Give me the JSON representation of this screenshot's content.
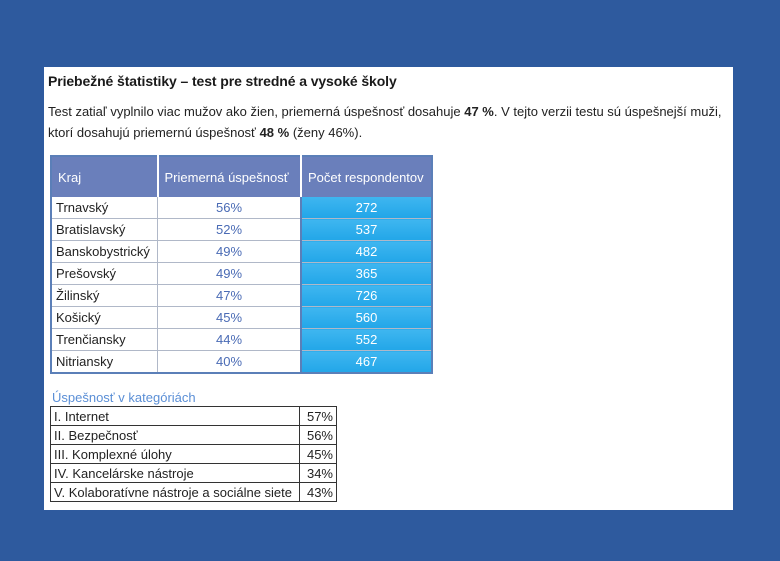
{
  "title": "Priebežné štatistiky – test pre stredné a vysoké školy",
  "intro": {
    "part1": "Test zatiaľ vyplnilo viac mužov ako žien, priemerná úspešnosť dosahuje ",
    "bold1": "47 %",
    "part2": ". V tejto verzii testu sú úspešnejší muži, ktorí dosahujú priemernú úspešnosť ",
    "bold2": "48 %",
    "part3": " (ženy 46%)."
  },
  "regions_table": {
    "headers": [
      "Kraj",
      "Priemerná úspešnosť",
      "Počet respondentov"
    ],
    "rows": [
      {
        "kraj": "Trnavský",
        "pct": "56%",
        "count": "272"
      },
      {
        "kraj": "Bratislavský",
        "pct": "52%",
        "count": "537"
      },
      {
        "kraj": "Banskobystrický",
        "pct": "49%",
        "count": "482"
      },
      {
        "kraj": "Prešovský",
        "pct": "49%",
        "count": "365"
      },
      {
        "kraj": "Žilinský",
        "pct": "47%",
        "count": "726"
      },
      {
        "kraj": "Košický",
        "pct": "45%",
        "count": "560"
      },
      {
        "kraj": "Trenčiansky",
        "pct": "44%",
        "count": "552"
      },
      {
        "kraj": "Nitriansky",
        "pct": "40%",
        "count": "467"
      }
    ]
  },
  "categories": {
    "caption": "Úspešnosť v kategóriách",
    "rows": [
      {
        "name": "I. Internet",
        "value": "57%"
      },
      {
        "name": "II. Bezpečnosť",
        "value": "56%"
      },
      {
        "name": "III. Komplexné úlohy",
        "value": "45%"
      },
      {
        "name": "IV. Kancelárske nástroje",
        "value": "34%"
      },
      {
        "name": "V. Kolaboratívne nástroje a sociálne siete",
        "value": "43%"
      }
    ]
  },
  "colors": {
    "background": "#2e5a9e",
    "header_fill": "#6a7fbb",
    "count_fill": "#22a6e8",
    "pct_text": "#4a6bb5",
    "caption_text": "#5b8fd6"
  }
}
